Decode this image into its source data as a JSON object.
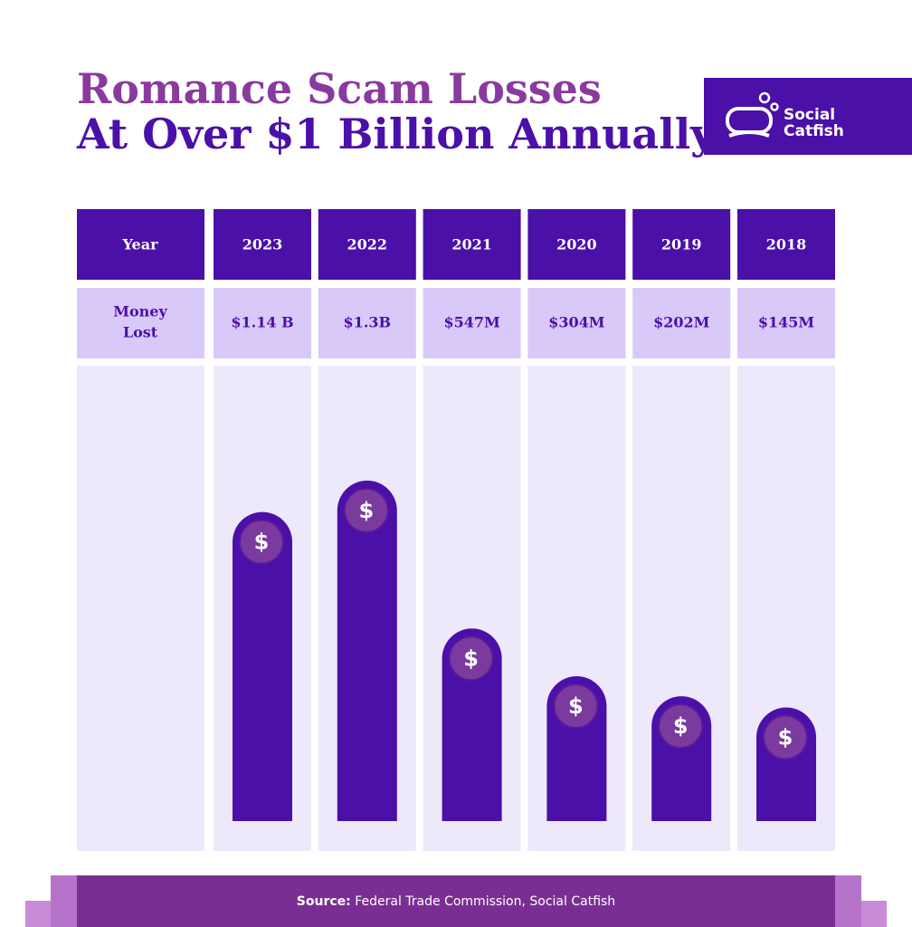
{
  "header": {
    "title_line1": "Romance Scam Losses",
    "title_line2": "At Over $1 Billion Annually",
    "logo": {
      "line1": "Social",
      "line2": "Catfish"
    }
  },
  "chart_data": {
    "type": "bar",
    "row_labels": {
      "year": "Year",
      "money_lost": [
        "Money",
        "Lost"
      ]
    },
    "categories": [
      "2023",
      "2022",
      "2021",
      "2020",
      "2019",
      "2018"
    ],
    "values": [
      1140,
      1300,
      547,
      304,
      202,
      145
    ],
    "value_labels": [
      "$1.14 B",
      "$1.3B",
      "$547M",
      "$304M",
      "$202M",
      "$145M"
    ],
    "color": "#4a10a8",
    "icon_symbol": "$"
  },
  "footer": {
    "source_label": "Source:",
    "source_text": "Federal Trade Commission, Social Catfish"
  }
}
